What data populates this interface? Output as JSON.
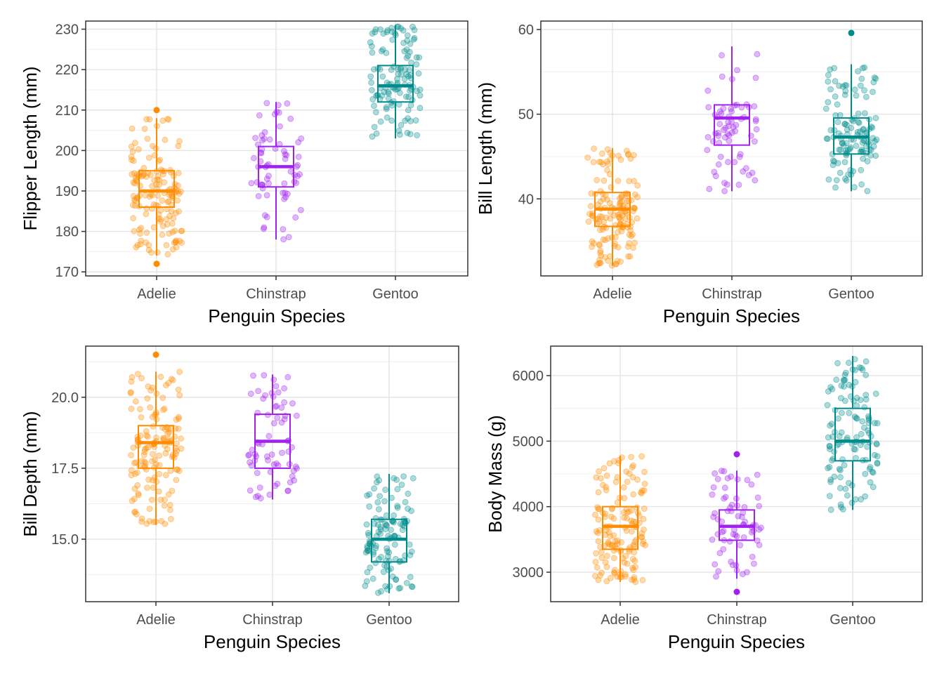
{
  "colors": {
    "Adelie": "#FF8C00",
    "Chinstrap": "#A020F0",
    "Gentoo": "#008B8B"
  },
  "chart_data": [
    {
      "type": "box",
      "id": "flipper",
      "xlabel": "Penguin Species",
      "ylabel": "Flipper Length (mm)",
      "categories": [
        "Adelie",
        "Chinstrap",
        "Gentoo"
      ],
      "ylim": [
        169,
        232
      ],
      "yticks": [
        170,
        180,
        190,
        200,
        210,
        220,
        230
      ],
      "tick_labels": [
        "170",
        "180",
        "190",
        "200",
        "210",
        "220",
        "230"
      ],
      "grid": true,
      "boxes": [
        {
          "name": "Adelie",
          "min": 174,
          "q1": 186,
          "median": 190,
          "q3": 195,
          "max": 208,
          "outliers": [
            210,
            172
          ],
          "n": 151
        },
        {
          "name": "Chinstrap",
          "min": 178,
          "q1": 191,
          "median": 196,
          "q3": 201,
          "max": 212,
          "outliers": [],
          "n": 68
        },
        {
          "name": "Gentoo",
          "min": 203,
          "q1": 212,
          "median": 216,
          "q3": 221,
          "max": 231,
          "outliers": [],
          "n": 123
        }
      ]
    },
    {
      "type": "box",
      "id": "bill_length",
      "xlabel": "Penguin Species",
      "ylabel": "Bill Length (mm)",
      "categories": [
        "Adelie",
        "Chinstrap",
        "Gentoo"
      ],
      "ylim": [
        30.9,
        61
      ],
      "yticks": [
        40,
        50,
        60
      ],
      "tick_labels": [
        "40",
        "50",
        "60"
      ],
      "grid": true,
      "boxes": [
        {
          "name": "Adelie",
          "min": 32.1,
          "q1": 36.75,
          "median": 38.8,
          "q3": 40.75,
          "max": 46.0,
          "outliers": [],
          "n": 151
        },
        {
          "name": "Chinstrap",
          "min": 40.9,
          "q1": 46.35,
          "median": 49.55,
          "q3": 51.1,
          "max": 58.0,
          "outliers": [],
          "n": 68
        },
        {
          "name": "Gentoo",
          "min": 40.9,
          "q1": 45.3,
          "median": 47.3,
          "q3": 49.55,
          "max": 55.9,
          "outliers": [
            59.6
          ],
          "n": 123
        }
      ]
    },
    {
      "type": "box",
      "id": "bill_depth",
      "xlabel": "Penguin Species",
      "ylabel": "Bill Depth (mm)",
      "categories": [
        "Adelie",
        "Chinstrap",
        "Gentoo"
      ],
      "ylim": [
        12.8,
        21.8
      ],
      "yticks": [
        15.0,
        17.5,
        20.0
      ],
      "tick_labels": [
        "15.0",
        "17.5",
        "20.0"
      ],
      "grid": true,
      "boxes": [
        {
          "name": "Adelie",
          "min": 15.5,
          "q1": 17.5,
          "median": 18.4,
          "q3": 19.0,
          "max": 20.9,
          "outliers": [
            21.5
          ],
          "n": 151
        },
        {
          "name": "Chinstrap",
          "min": 16.4,
          "q1": 17.5,
          "median": 18.45,
          "q3": 19.4,
          "max": 20.8,
          "outliers": [],
          "n": 68
        },
        {
          "name": "Gentoo",
          "min": 13.1,
          "q1": 14.2,
          "median": 15.0,
          "q3": 15.7,
          "max": 17.3,
          "outliers": [],
          "n": 123
        }
      ]
    },
    {
      "type": "box",
      "id": "body_mass",
      "xlabel": "Penguin Species",
      "ylabel": "Body Mass (g)",
      "categories": [
        "Adelie",
        "Chinstrap",
        "Gentoo"
      ],
      "ylim": [
        2550,
        6450
      ],
      "yticks": [
        3000,
        4000,
        5000,
        6000
      ],
      "tick_labels": [
        "3000",
        "4000",
        "5000",
        "6000"
      ],
      "grid": true,
      "boxes": [
        {
          "name": "Adelie",
          "min": 2850,
          "q1": 3350,
          "median": 3700,
          "q3": 4000,
          "max": 4775,
          "outliers": [],
          "n": 151
        },
        {
          "name": "Chinstrap",
          "min": 2900,
          "q1": 3487.5,
          "median": 3700,
          "q3": 3950,
          "max": 4550,
          "outliers": [
            4800,
            2700
          ],
          "n": 68
        },
        {
          "name": "Gentoo",
          "min": 3950,
          "q1": 4700,
          "median": 5000,
          "q3": 5500,
          "max": 6300,
          "outliers": [],
          "n": 123
        }
      ]
    }
  ]
}
